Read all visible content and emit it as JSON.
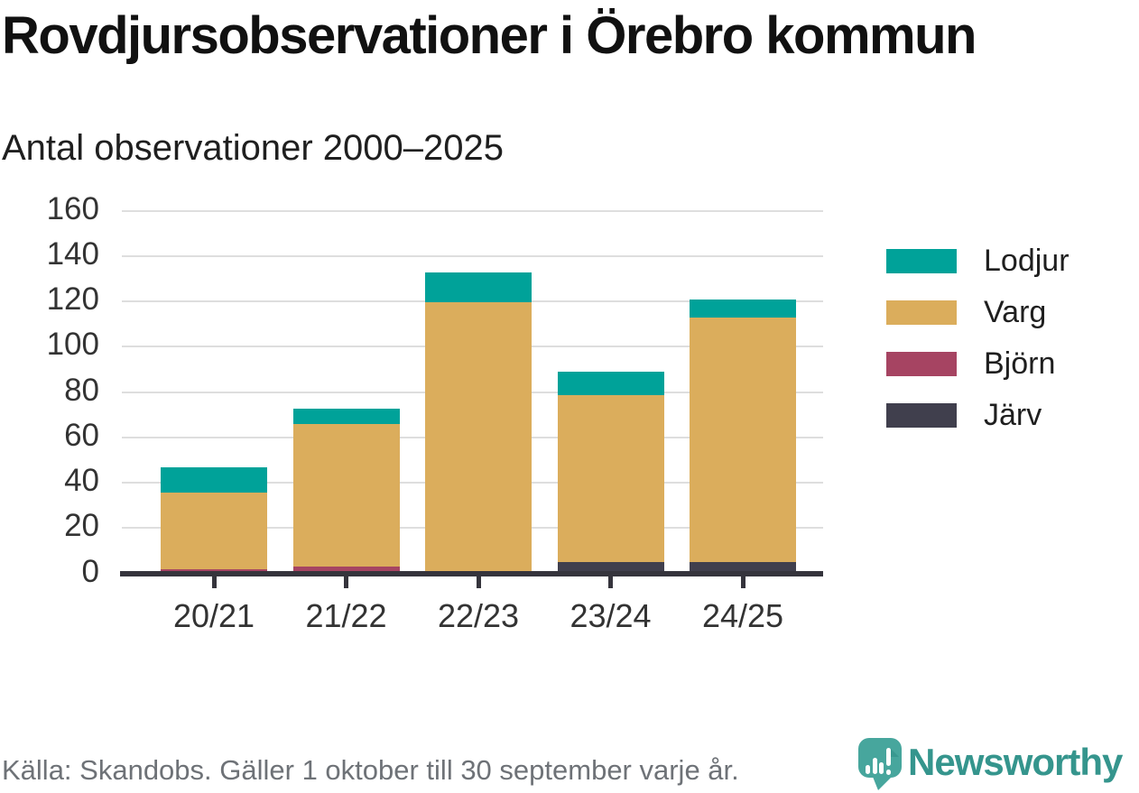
{
  "header": {
    "title": "Rovdjursobservationer i Örebro kommun",
    "subtitle": "Antal observationer 2000–2025"
  },
  "chart_data": {
    "type": "bar",
    "stacked": true,
    "title": "Rovdjursobservationer i Örebro kommun",
    "subtitle": "Antal observationer 2000–2025",
    "categories": [
      "20/21",
      "21/22",
      "22/23",
      "23/24",
      "24/25"
    ],
    "series": [
      {
        "name": "Lodjur",
        "color": "#00a299",
        "values": [
          11,
          7,
          13,
          10,
          8
        ]
      },
      {
        "name": "Varg",
        "color": "#dbad5c",
        "values": [
          34,
          63,
          119,
          74,
          108
        ]
      },
      {
        "name": "Björn",
        "color": "#a64462",
        "values": [
          1,
          2,
          0,
          0,
          0
        ]
      },
      {
        "name": "Järv",
        "color": "#403f4d",
        "values": [
          0,
          0,
          0,
          4,
          4
        ]
      }
    ],
    "totals": [
      46,
      72,
      132,
      88,
      120
    ],
    "xlabel": "",
    "ylabel": "Antal observationer",
    "ylim": [
      0,
      160
    ],
    "yticks": [
      0,
      20,
      40,
      60,
      80,
      100,
      120,
      140,
      160
    ],
    "grid": "horizontal",
    "legend_position": "right"
  },
  "footer": {
    "source": "Källa: Skandobs. Gäller 1 oktober till 30 september varje år.",
    "brand": "Newsworthy"
  },
  "colors": {
    "grid": "#dedede",
    "axis": "#35343c",
    "tick_label": "#333333",
    "footer_text": "#6e7277",
    "brand_teal": "#35958d",
    "logo_bubble": "#47a69d"
  }
}
